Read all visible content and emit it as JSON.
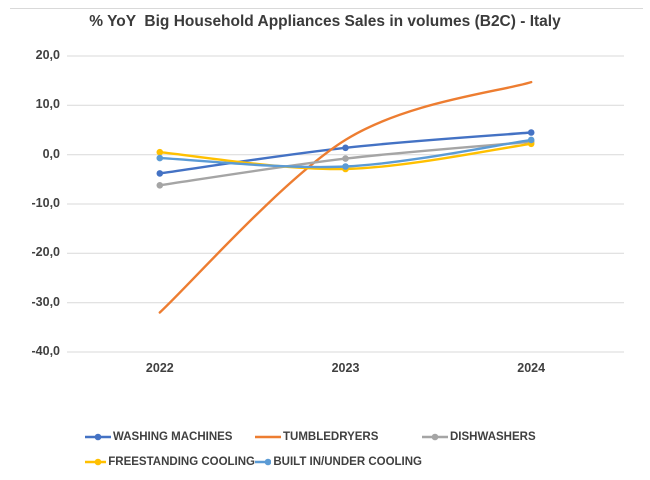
{
  "chart": {
    "top_border_color": "#D9D9D9",
    "background": "#FFFFFF"
  },
  "chart_data": {
    "type": "line",
    "title": "% YoY  Big Household Appliances Sales in volumes (B2C) - Italy",
    "categories": [
      "2022",
      "2023",
      "2024"
    ],
    "series": [
      {
        "name": "WASHING MACHINES",
        "color": "#4472C4",
        "markers": true,
        "values": [
          -3.8,
          1.4,
          4.5
        ]
      },
      {
        "name": "TUMBLEDRYERS",
        "color": "#ED7D31",
        "markers": false,
        "values": [
          -32.0,
          3.0,
          14.7
        ]
      },
      {
        "name": "DISHWASHERS",
        "color": "#A5A5A5",
        "markers": true,
        "values": [
          -6.2,
          -0.8,
          2.6
        ]
      },
      {
        "name": "FREESTANDING COOLING",
        "color": "#FFC000",
        "markers": true,
        "values": [
          0.5,
          -2.9,
          2.2
        ]
      },
      {
        "name": "BUILT IN/UNDER COOLING",
        "color": "#5B9BD5",
        "markers": true,
        "values": [
          -0.7,
          -2.4,
          3.0
        ]
      }
    ],
    "y_axis": {
      "min": -40,
      "max": 20,
      "tick_step": 10,
      "tick_labels": [
        "20,0",
        "10,0",
        "0,0",
        "-10,0",
        "-20,0",
        "-30,0",
        "-40,0"
      ],
      "decimal_separator": "comma"
    },
    "x_axis": {
      "tick_labels": [
        "2022",
        "2023",
        "2024"
      ]
    },
    "grid": true,
    "gridline_color": "#D9D9D9",
    "axis_text_color": "#404040",
    "title_color": "#3B3B3B",
    "legend_position": "bottom-left",
    "smooth_lines": true
  }
}
